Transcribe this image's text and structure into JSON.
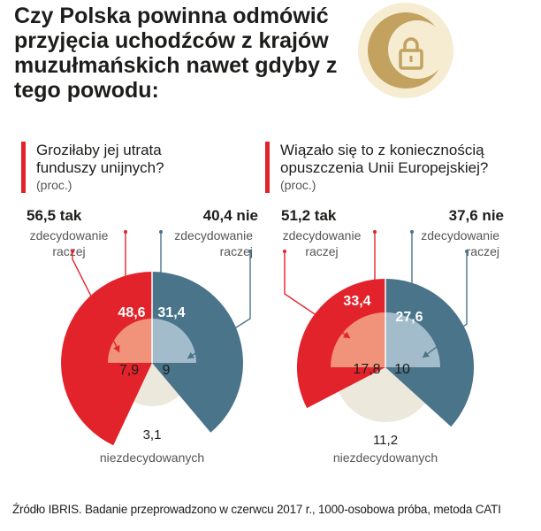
{
  "title": "Czy  Polska powinna odmówić przyjęcia uchodźców z krajów muzułmańskich nawet gdyby z tego powodu:",
  "source": "Źródło IBRIS. Badanie przeprowadzono w czerwcu 2017 r., 1000-osobowa próba, metoda CATI",
  "icon": "crescent-padlock-icon",
  "colors": {
    "yes_definitely": "#e3232b",
    "yes_rather": "#f0937a",
    "no_definitely": "#4a7489",
    "no_rather": "#a3bccb",
    "undecided": "#ede8dc",
    "icon_bg": "#f5ecd2",
    "icon_fg": "#c2a25e",
    "accent_bar": "#e3232b"
  },
  "chart_data": [
    {
      "type": "pie",
      "question": "Groziłaby jej utrata funduszy unijnych?",
      "unit": "(proc.)",
      "yes_total_label": "56,5 tak",
      "no_total_label": "40,4 nie",
      "label_definitely": "zdecydowanie",
      "label_rather": "raczej",
      "undecided_label": "niezdecydowanych",
      "yes_definitely": 48.6,
      "yes_rather": 7.9,
      "no_definitely": 31.4,
      "no_rather": 9,
      "undecided": 3.1,
      "labels": {
        "yes_definitely": "48,6",
        "yes_rather": "7,9",
        "no_definitely": "31,4",
        "no_rather": "9",
        "undecided": "3,1"
      }
    },
    {
      "type": "pie",
      "question": "Wiązało się to z koniecznością opuszczenia Unii Europejskiej?",
      "unit": "(proc.)",
      "yes_total_label": "51,2 tak",
      "no_total_label": "37,6 nie",
      "label_definitely": "zdecydowanie",
      "label_rather": "raczej",
      "undecided_label": "niezdecydowanych",
      "yes_definitely": 33.4,
      "yes_rather": 17.8,
      "no_definitely": 27.6,
      "no_rather": 10,
      "undecided": 11.2,
      "labels": {
        "yes_definitely": "33,4",
        "yes_rather": "17,8",
        "no_definitely": "27,6",
        "no_rather": "10",
        "undecided": "11,2"
      }
    }
  ]
}
